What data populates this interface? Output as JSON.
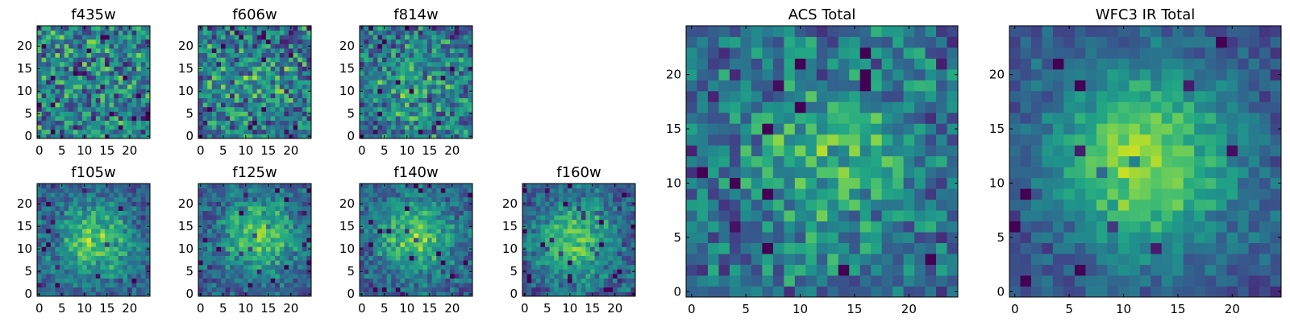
{
  "chart_data": [
    {
      "type": "heatmap",
      "title": "f435w",
      "grid_size": 25,
      "xlim": [
        0,
        25
      ],
      "ylim": [
        0,
        25
      ],
      "x_ticks": [
        0,
        5,
        10,
        15,
        20
      ],
      "y_ticks": [
        0,
        5,
        10,
        15,
        20
      ],
      "x_tick_labels": [
        "0",
        "5",
        "10",
        "15",
        "20"
      ],
      "y_tick_labels": [
        "0",
        "5",
        "10",
        "15",
        "20"
      ],
      "center": [
        12,
        12
      ],
      "peak": 0.0,
      "noise": 0.55,
      "seed": 11,
      "colormap": "viridis"
    },
    {
      "type": "heatmap",
      "title": "f606w",
      "grid_size": 25,
      "xlim": [
        0,
        25
      ],
      "ylim": [
        0,
        25
      ],
      "x_ticks": [
        0,
        5,
        10,
        15,
        20
      ],
      "y_ticks": [
        0,
        5,
        10,
        15,
        20
      ],
      "x_tick_labels": [
        "0",
        "5",
        "10",
        "15",
        "20"
      ],
      "y_tick_labels": [
        "0",
        "5",
        "10",
        "15",
        "20"
      ],
      "center": [
        12,
        12
      ],
      "peak": 0.1,
      "noise": 0.55,
      "seed": 23,
      "colormap": "viridis"
    },
    {
      "type": "heatmap",
      "title": "f814w",
      "grid_size": 25,
      "xlim": [
        0,
        25
      ],
      "ylim": [
        0,
        25
      ],
      "x_ticks": [
        0,
        5,
        10,
        15,
        20
      ],
      "y_ticks": [
        0,
        5,
        10,
        15,
        20
      ],
      "x_tick_labels": [
        "0",
        "5",
        "10",
        "15",
        "20"
      ],
      "y_tick_labels": [
        "0",
        "5",
        "10",
        "15",
        "20"
      ],
      "center": [
        12,
        11
      ],
      "peak": 0.2,
      "noise": 0.5,
      "seed": 37,
      "colormap": "viridis"
    },
    {
      "type": "heatmap",
      "title": "f105w",
      "grid_size": 25,
      "xlim": [
        0,
        25
      ],
      "ylim": [
        0,
        25
      ],
      "x_ticks": [
        0,
        5,
        10,
        15,
        20
      ],
      "y_ticks": [
        0,
        5,
        10,
        15,
        20
      ],
      "x_tick_labels": [
        "0",
        "5",
        "10",
        "15",
        "20"
      ],
      "y_tick_labels": [
        "0",
        "5",
        "10",
        "15",
        "20"
      ],
      "center": [
        12,
        12
      ],
      "peak": 0.45,
      "noise": 0.32,
      "seed": 41,
      "colormap": "viridis"
    },
    {
      "type": "heatmap",
      "title": "f125w",
      "grid_size": 25,
      "xlim": [
        0,
        25
      ],
      "ylim": [
        0,
        25
      ],
      "x_ticks": [
        0,
        5,
        10,
        15,
        20
      ],
      "y_ticks": [
        0,
        5,
        10,
        15,
        20
      ],
      "x_tick_labels": [
        "0",
        "5",
        "10",
        "15",
        "20"
      ],
      "y_tick_labels": [
        "0",
        "5",
        "10",
        "15",
        "20"
      ],
      "center": [
        13,
        13
      ],
      "peak": 0.45,
      "noise": 0.32,
      "seed": 53,
      "colormap": "viridis"
    },
    {
      "type": "heatmap",
      "title": "f140w",
      "grid_size": 25,
      "xlim": [
        0,
        25
      ],
      "ylim": [
        0,
        25
      ],
      "x_ticks": [
        0,
        5,
        10,
        15,
        20
      ],
      "y_ticks": [
        0,
        5,
        10,
        15,
        20
      ],
      "x_tick_labels": [
        "0",
        "5",
        "10",
        "15",
        "20"
      ],
      "y_tick_labels": [
        "0",
        "5",
        "10",
        "15",
        "20"
      ],
      "center": [
        12,
        13
      ],
      "peak": 0.45,
      "noise": 0.32,
      "seed": 67,
      "colormap": "viridis"
    },
    {
      "type": "heatmap",
      "title": "f160w",
      "grid_size": 25,
      "xlim": [
        0,
        25
      ],
      "ylim": [
        0,
        25
      ],
      "x_ticks": [
        0,
        5,
        10,
        15,
        20
      ],
      "y_ticks": [
        0,
        5,
        10,
        15,
        20
      ],
      "x_tick_labels": [
        "0",
        "5",
        "10",
        "15",
        "20"
      ],
      "y_tick_labels": [
        "0",
        "5",
        "10",
        "15",
        "20"
      ],
      "center": [
        11,
        12
      ],
      "peak": 0.45,
      "noise": 0.32,
      "seed": 79,
      "colormap": "viridis"
    },
    {
      "type": "heatmap",
      "title": "ACS Total",
      "grid_size": 25,
      "xlim": [
        0,
        25
      ],
      "ylim": [
        0,
        25
      ],
      "x_ticks": [
        0,
        5,
        10,
        15,
        20
      ],
      "y_ticks": [
        0,
        5,
        10,
        15,
        20
      ],
      "x_tick_labels": [
        "0",
        "5",
        "10",
        "15",
        "20"
      ],
      "y_tick_labels": [
        "0",
        "5",
        "10",
        "15",
        "20"
      ],
      "center": [
        13,
        12
      ],
      "peak": 0.3,
      "noise": 0.42,
      "seed": 97,
      "colormap": "viridis"
    },
    {
      "type": "heatmap",
      "title": "WFC3 IR Total",
      "grid_size": 25,
      "xlim": [
        0,
        25
      ],
      "ylim": [
        0,
        25
      ],
      "x_ticks": [
        0,
        5,
        10,
        15,
        20
      ],
      "y_ticks": [
        0,
        5,
        10,
        15,
        20
      ],
      "x_tick_labels": [
        "0",
        "5",
        "10",
        "15",
        "20"
      ],
      "y_tick_labels": [
        "0",
        "5",
        "10",
        "15",
        "20"
      ],
      "center": [
        12,
        12
      ],
      "peak": 0.6,
      "noise": 0.22,
      "seed": 113,
      "colormap": "viridis"
    }
  ]
}
